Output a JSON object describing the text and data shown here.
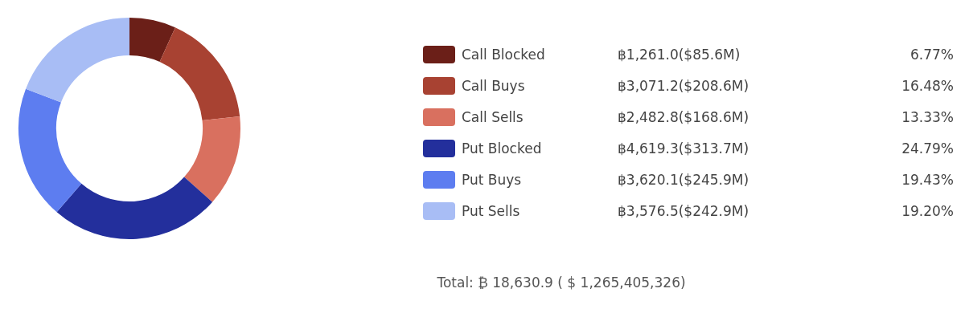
{
  "chart_data": {
    "type": "donut",
    "categories": [
      "Call Blocked",
      "Call Buys",
      "Call Sells",
      "Put Blocked",
      "Put Buys",
      "Put Sells"
    ],
    "values": [
      1261.0,
      3071.2,
      2482.8,
      4619.3,
      3620.1,
      3576.5
    ],
    "colors": [
      "#6b1f18",
      "#a84232",
      "#d9705f",
      "#232f9c",
      "#5d7df0",
      "#a8bdf5"
    ],
    "value_labels": [
      "฿1,261.0($85.6M)",
      "฿3,071.2($208.6M)",
      "฿2,482.8($168.6M)",
      "฿4,619.3($313.7M)",
      "฿3,620.1($245.9M)",
      "฿3,576.5($242.9M)"
    ],
    "legend": "right",
    "annotations": [
      {
        "text": "6.77%",
        "x": "Call Blocked"
      },
      {
        "text": "16.48%",
        "x": "Call Buys"
      },
      {
        "text": "13.33%",
        "x": "Call Sells"
      },
      {
        "text": "24.79%",
        "x": "Put Blocked"
      },
      {
        "text": "19.43%",
        "x": "Put Buys"
      },
      {
        "text": "19.20%",
        "x": "Put Sells"
      },
      "Total: ₿ 18,630.9 ( $ 1,265,405,326)"
    ]
  }
}
